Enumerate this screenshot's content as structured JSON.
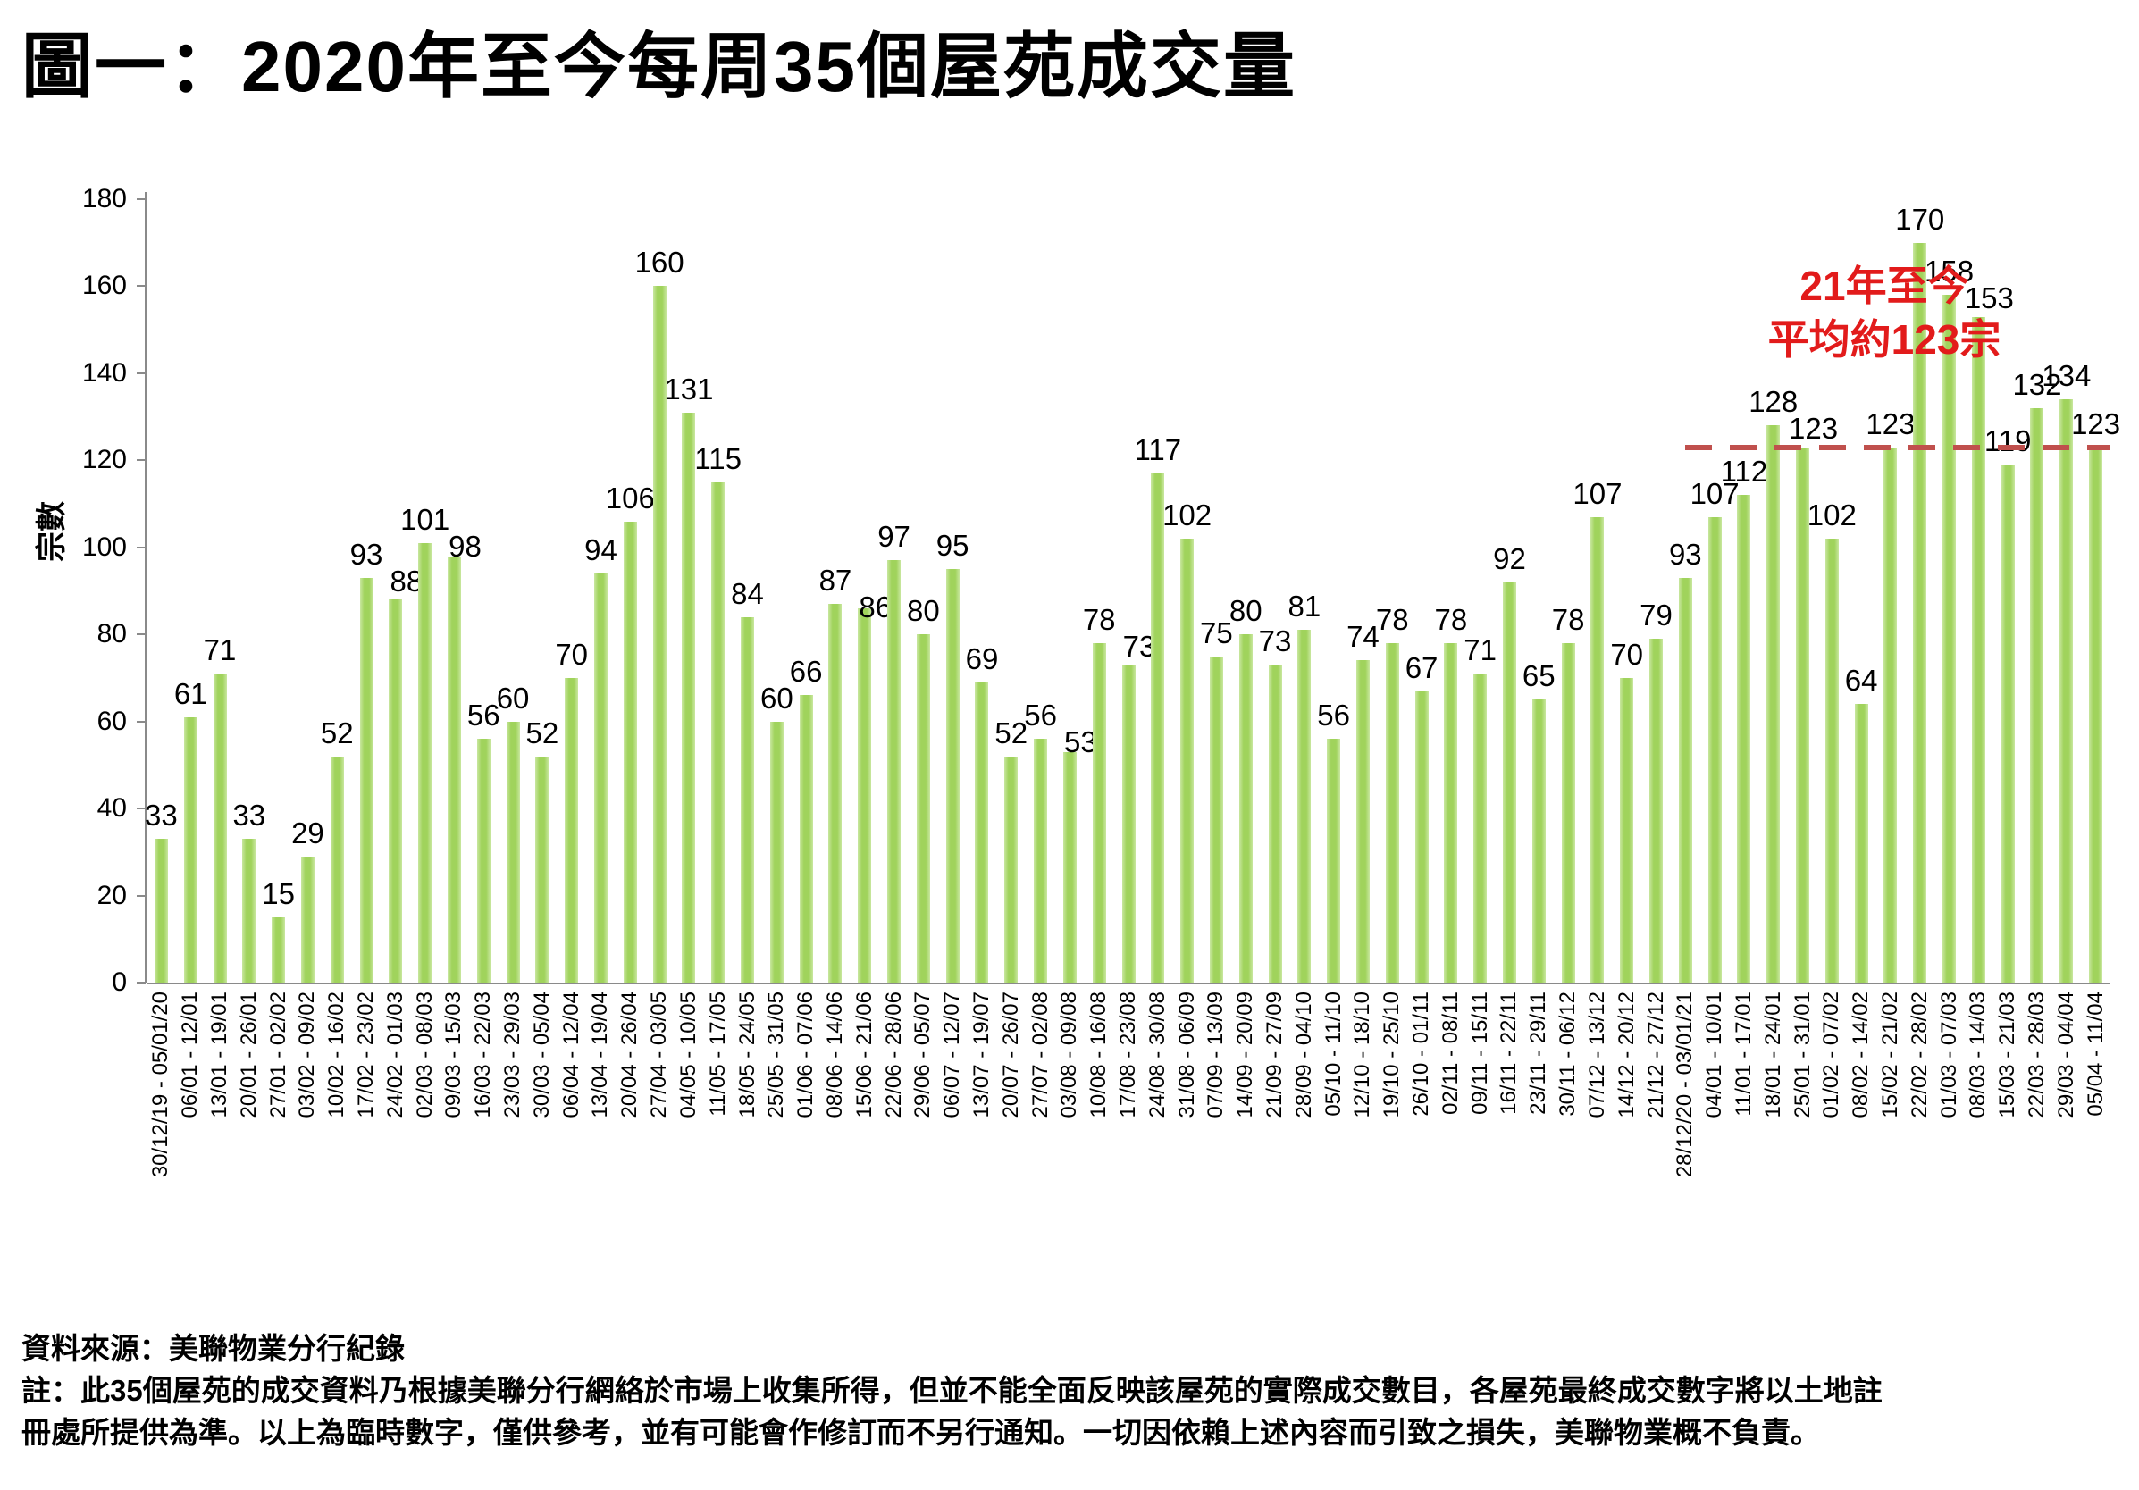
{
  "title": "圖一：2020年至今每周35個屋苑成交量",
  "chart_data": {
    "type": "bar",
    "title": "圖一：2020年至今每周35個屋苑成交量",
    "xlabel": "",
    "ylabel": "宗數",
    "ylim": [
      0,
      180
    ],
    "ytick_step": 20,
    "grid": "off",
    "legend": "none",
    "bar_color": "#a0d35c",
    "categories": [
      "30/12/19 - 05/01/20",
      "06/01 - 12/01",
      "13/01 - 19/01",
      "20/01 - 26/01",
      "27/01 - 02/02",
      "03/02 - 09/02",
      "10/02 - 16/02",
      "17/02 - 23/02",
      "24/02 - 01/03",
      "02/03 - 08/03",
      "09/03 - 15/03",
      "16/03 - 22/03",
      "23/03 - 29/03",
      "30/03 - 05/04",
      "06/04 - 12/04",
      "13/04 - 19/04",
      "20/04 - 26/04",
      "27/04 - 03/05",
      "04/05 - 10/05",
      "11/05 - 17/05",
      "18/05 - 24/05",
      "25/05 - 31/05",
      "01/06 - 07/06",
      "08/06 - 14/06",
      "15/06 - 21/06",
      "22/06 - 28/06",
      "29/06 - 05/07",
      "06/07 - 12/07",
      "13/07 - 19/07",
      "20/07 - 26/07",
      "27/07 - 02/08",
      "03/08 - 09/08",
      "10/08 - 16/08",
      "17/08 - 23/08",
      "24/08 - 30/08",
      "31/08 - 06/09",
      "07/09 - 13/09",
      "14/09 - 20/09",
      "21/09 - 27/09",
      "28/09 - 04/10",
      "05/10 - 11/10",
      "12/10 - 18/10",
      "19/10 - 25/10",
      "26/10 - 01/11",
      "02/11 - 08/11",
      "09/11 - 15/11",
      "16/11 - 22/11",
      "23/11 - 29/11",
      "30/11 - 06/12",
      "07/12 - 13/12",
      "14/12 - 20/12",
      "21/12 - 27/12",
      "28/12/20 - 03/01/21",
      "04/01 - 10/01",
      "11/01 - 17/01",
      "18/01 - 24/01",
      "25/01 - 31/01",
      "01/02 - 07/02",
      "08/02 - 14/02",
      "15/02 - 21/02",
      "22/02 - 28/02",
      "01/03 - 07/03",
      "08/03 - 14/03",
      "15/03 - 21/03",
      "22/03 - 28/03",
      "29/03 - 04/04",
      "05/04 - 11/04"
    ],
    "values": [
      33,
      61,
      71,
      33,
      15,
      29,
      52,
      93,
      88,
      101,
      98,
      56,
      60,
      52,
      70,
      94,
      106,
      160,
      131,
      115,
      84,
      60,
      66,
      87,
      86,
      97,
      80,
      95,
      69,
      52,
      56,
      53,
      78,
      73,
      117,
      102,
      75,
      80,
      73,
      81,
      56,
      74,
      78,
      67,
      78,
      71,
      92,
      65,
      78,
      107,
      70,
      79,
      93,
      107,
      112,
      128,
      123,
      102,
      64,
      123,
      170,
      158,
      153,
      119,
      132,
      134,
      123
    ],
    "annotation": {
      "line1": "21年至今",
      "line2": "平均約123宗",
      "avg_value": 123,
      "text_color": "#e21b1b",
      "dashed_line_color": "#c0504d"
    }
  },
  "footer": {
    "source": "資料來源：美聯物業分行紀錄",
    "note": "註：此35個屋苑的成交資料乃根據美聯分行網絡於市場上收集所得，但並不能全面反映該屋苑的實際成交數目，各屋苑最終成交數字將以土地註\n冊處所提供為準。以上為臨時數字，僅供參考，並有可能會作修訂而不另行通知。一切因依賴上述內容而引致之損失，美聯物業概不負責。"
  }
}
